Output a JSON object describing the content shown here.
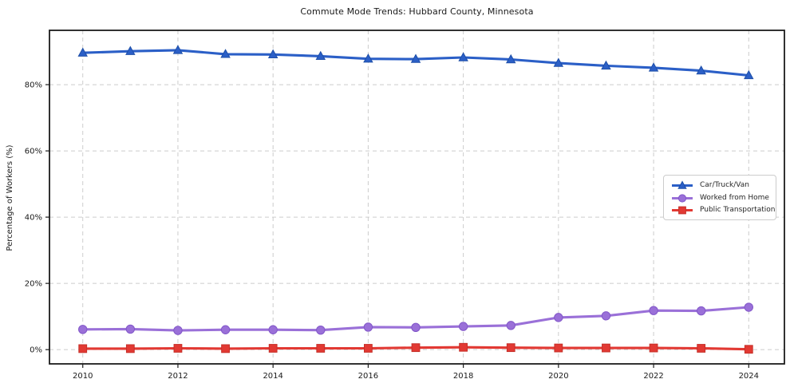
{
  "chart_data": {
    "type": "line",
    "title": "Commute Mode Trends: Hubbard County, Minnesota",
    "xlabel": "",
    "ylabel": "Percentage of Workers (%)",
    "x": [
      2010,
      2011,
      2012,
      2013,
      2014,
      2015,
      2016,
      2017,
      2018,
      2019,
      2020,
      2021,
      2022,
      2023,
      2024
    ],
    "series": [
      {
        "name": "Car/Truck/Van",
        "marker": "triangle",
        "color": "#2B5FC7",
        "edge_color": "#1E4FA8",
        "values": [
          89.6,
          90.1,
          90.4,
          89.2,
          89.1,
          88.6,
          87.8,
          87.7,
          88.2,
          87.6,
          86.5,
          85.7,
          85.1,
          84.2,
          82.8
        ]
      },
      {
        "name": "Worked from Home",
        "marker": "circle",
        "color": "#9A70D8",
        "edge_color": "#8257C9",
        "values": [
          6.1,
          6.2,
          5.8,
          6.0,
          6.0,
          5.9,
          6.8,
          6.7,
          7.0,
          7.3,
          9.7,
          10.2,
          11.8,
          11.7,
          12.8
        ]
      },
      {
        "name": "Public Transportation",
        "marker": "square",
        "color": "#E23933",
        "edge_color": "#C52F28",
        "values": [
          0.3,
          0.3,
          0.4,
          0.3,
          0.4,
          0.4,
          0.4,
          0.6,
          0.7,
          0.6,
          0.5,
          0.5,
          0.5,
          0.4,
          0.1
        ]
      }
    ],
    "xticks": {
      "values": [
        2010,
        2012,
        2014,
        2016,
        2018,
        2020,
        2022,
        2024
      ],
      "labels": [
        "2010",
        "2012",
        "2014",
        "2016",
        "2018",
        "2020",
        "2022",
        "2024"
      ]
    },
    "yticks": {
      "values": [
        0,
        20,
        40,
        60,
        80
      ],
      "labels": [
        "0%",
        "20%",
        "40%",
        "60%",
        "80%"
      ]
    },
    "xlim": [
      2009.3,
      2024.75
    ],
    "ylim": [
      -4.3,
      96.4
    ],
    "grid": true,
    "legend_position": "center-right"
  },
  "colors": {
    "background": "#ffffff",
    "grid": "#cccccc",
    "spine": "#1b1b1b",
    "tick_text": "#1a1a1a"
  }
}
